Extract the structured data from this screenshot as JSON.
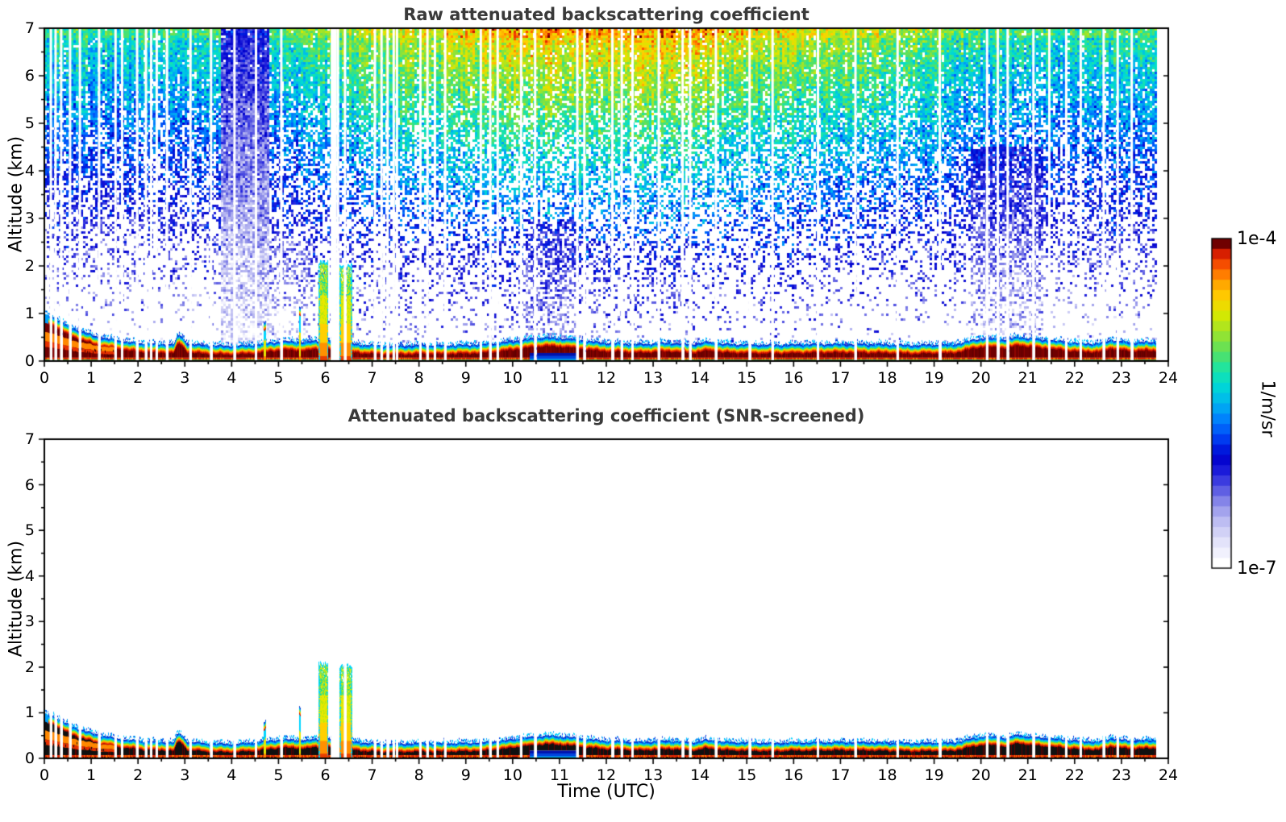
{
  "figure": {
    "background": "#ffffff",
    "title_color": "#3a3a3a",
    "axis_color": "#000000"
  },
  "chart_data": {
    "type": "heatmap",
    "x_unit": "hours UTC",
    "y_unit": "km",
    "panels": [
      {
        "title": "Raw attenuated backscattering coefficient",
        "ylabel": "Altitude (km)",
        "xlabel": "",
        "xlim": [
          0,
          24
        ],
        "ylim": [
          0,
          7
        ],
        "xticks": [
          0,
          1,
          2,
          3,
          4,
          5,
          6,
          7,
          8,
          9,
          10,
          11,
          12,
          13,
          14,
          15,
          16,
          17,
          18,
          19,
          20,
          21,
          22,
          23,
          24
        ],
        "yticks": [
          0,
          1,
          2,
          3,
          4,
          5,
          6,
          7
        ],
        "x_minor_step": 0.5,
        "y_minor_step": 0.5,
        "screened": false
      },
      {
        "title": "Attenuated backscattering coefficient (SNR-screened)",
        "ylabel": "Altitude (km)",
        "xlabel": "Time (UTC)",
        "xlim": [
          0,
          24
        ],
        "ylim": [
          0,
          7
        ],
        "xticks": [
          0,
          1,
          2,
          3,
          4,
          5,
          6,
          7,
          8,
          9,
          10,
          11,
          12,
          13,
          14,
          15,
          16,
          17,
          18,
          19,
          20,
          21,
          22,
          23,
          24
        ],
        "yticks": [
          0,
          1,
          2,
          3,
          4,
          5,
          6,
          7
        ],
        "x_minor_step": 0.5,
        "y_minor_step": 0.5,
        "screened": true
      }
    ],
    "colorbar": {
      "max_label": "1e-4",
      "min_label": "1e-7",
      "unit": "1/m/sr",
      "scale": "log",
      "bands": 32,
      "stops": [
        [
          0.0,
          "#ffffff"
        ],
        [
          0.04,
          "#eeeefc"
        ],
        [
          0.08,
          "#dcdcf8"
        ],
        [
          0.13,
          "#bcbcf2"
        ],
        [
          0.18,
          "#9494ea"
        ],
        [
          0.23,
          "#5a5ae2"
        ],
        [
          0.28,
          "#2222dd"
        ],
        [
          0.33,
          "#0000cc"
        ],
        [
          0.38,
          "#0033ee"
        ],
        [
          0.44,
          "#0077ff"
        ],
        [
          0.5,
          "#00b4f0"
        ],
        [
          0.56,
          "#00dcd2"
        ],
        [
          0.61,
          "#20e4a0"
        ],
        [
          0.66,
          "#58e060"
        ],
        [
          0.72,
          "#9ce42c"
        ],
        [
          0.78,
          "#d8e800"
        ],
        [
          0.83,
          "#ffd000"
        ],
        [
          0.88,
          "#ffa000"
        ],
        [
          0.92,
          "#ff6400"
        ],
        [
          0.96,
          "#e62800"
        ],
        [
          0.985,
          "#b40a00"
        ],
        [
          1.0,
          "#700000"
        ]
      ]
    },
    "seed": 42,
    "data_end_hour": 23.73,
    "left_edge_cool_until": 0.08,
    "orange_inner_end_hour": 1.6,
    "layer_top_km": [
      [
        0,
        0.97
      ],
      [
        0.2,
        0.92
      ],
      [
        0.5,
        0.74
      ],
      [
        0.8,
        0.62
      ],
      [
        1.2,
        0.5
      ],
      [
        1.6,
        0.43
      ],
      [
        2.0,
        0.38
      ],
      [
        2.5,
        0.36
      ],
      [
        2.76,
        0.36
      ],
      [
        2.82,
        0.5
      ],
      [
        2.88,
        0.56
      ],
      [
        2.94,
        0.5
      ],
      [
        3.05,
        0.37
      ],
      [
        3.5,
        0.33
      ],
      [
        4.0,
        0.32
      ],
      [
        4.4,
        0.34
      ],
      [
        4.9,
        0.4
      ],
      [
        5.2,
        0.42
      ],
      [
        5.6,
        0.4
      ],
      [
        5.8,
        0.44
      ],
      [
        6.7,
        0.36
      ],
      [
        7.2,
        0.32
      ],
      [
        8.0,
        0.33
      ],
      [
        9.0,
        0.34
      ],
      [
        9.6,
        0.37
      ],
      [
        10.0,
        0.42
      ],
      [
        10.4,
        0.47
      ],
      [
        10.7,
        0.5
      ],
      [
        11.1,
        0.48
      ],
      [
        11.5,
        0.43
      ],
      [
        12.0,
        0.39
      ],
      [
        12.7,
        0.36
      ],
      [
        13.3,
        0.39
      ],
      [
        13.9,
        0.36
      ],
      [
        14.15,
        0.41
      ],
      [
        14.5,
        0.36
      ],
      [
        15.5,
        0.34
      ],
      [
        16.5,
        0.36
      ],
      [
        17.5,
        0.36
      ],
      [
        18.5,
        0.34
      ],
      [
        19.4,
        0.35
      ],
      [
        19.8,
        0.44
      ],
      [
        20.1,
        0.49
      ],
      [
        20.5,
        0.45
      ],
      [
        20.8,
        0.52
      ],
      [
        21.1,
        0.47
      ],
      [
        21.5,
        0.44
      ],
      [
        22.0,
        0.39
      ],
      [
        22.5,
        0.37
      ],
      [
        22.8,
        0.45
      ],
      [
        23.1,
        0.4
      ],
      [
        23.73,
        0.4
      ]
    ],
    "noise_amp_keypoints": [
      [
        0,
        0.6
      ],
      [
        2,
        0.58
      ],
      [
        3.5,
        0.6
      ],
      [
        5,
        0.6
      ],
      [
        6,
        0.68
      ],
      [
        7,
        0.72
      ],
      [
        8.5,
        0.76
      ],
      [
        9.5,
        0.82
      ],
      [
        10.5,
        0.86
      ],
      [
        12,
        0.84
      ],
      [
        13.5,
        0.85
      ],
      [
        14.5,
        0.8
      ],
      [
        16,
        0.76
      ],
      [
        17,
        0.74
      ],
      [
        18,
        0.71
      ],
      [
        19,
        0.67
      ],
      [
        20,
        0.62
      ],
      [
        21,
        0.6
      ],
      [
        21.8,
        0.58
      ],
      [
        22.5,
        0.62
      ],
      [
        23.73,
        0.6
      ]
    ],
    "boost_regions": [
      {
        "t0": 3.78,
        "t1": 4.78,
        "zmax": 7.0,
        "boost": 0.55,
        "amp": 0.5
      },
      {
        "t0": 4.78,
        "t1": 5.7,
        "zmax": 2.5,
        "boost": 0.18,
        "amp": 0.8
      },
      {
        "t0": 10.3,
        "t1": 11.35,
        "zmax": 3.0,
        "boost": 0.28,
        "amp": 0.75
      },
      {
        "t0": 6.5,
        "t1": 14.0,
        "zmax": 2.5,
        "boost": 0.07,
        "amp": 0.9
      },
      {
        "t0": 19.78,
        "t1": 21.35,
        "zmax": 4.5,
        "boost": 0.3,
        "amp": 0.8
      }
    ],
    "plumes": [
      {
        "t0": 5.85,
        "t1": 6.06,
        "top": 2.05
      },
      {
        "t0": 6.3,
        "t1": 6.56,
        "top": 2.0
      }
    ],
    "spikes": [
      {
        "t": 4.7,
        "top": 0.82
      },
      {
        "t": 5.45,
        "top": 1.12
      }
    ],
    "blue_subcore": {
      "t0": 10.35,
      "t1": 11.35,
      "top_km": 0.17
    },
    "gap_hours": [
      0.14,
      0.24,
      0.36,
      0.55,
      0.76,
      1.17,
      1.52,
      1.66,
      1.98,
      2.17,
      2.28,
      2.4,
      2.62,
      3.12,
      3.56,
      4.06,
      4.52,
      5.06,
      6.14,
      6.18,
      6.22,
      6.27,
      6.42,
      7.06,
      7.2,
      7.33,
      7.46,
      7.53,
      8.03,
      8.18,
      8.34,
      8.56,
      9.32,
      9.52,
      9.68,
      10.18,
      10.48,
      11.38,
      11.53,
      12.13,
      12.33,
      12.56,
      13.12,
      13.63,
      13.79,
      14.34,
      15.06,
      15.55,
      16.52,
      17.32,
      18.22,
      19.12,
      20.13,
      20.36,
      20.57,
      21.12,
      21.46,
      21.82,
      22.13,
      22.62,
      22.92,
      23.22
    ],
    "gap_width_hours": 0.05
  }
}
